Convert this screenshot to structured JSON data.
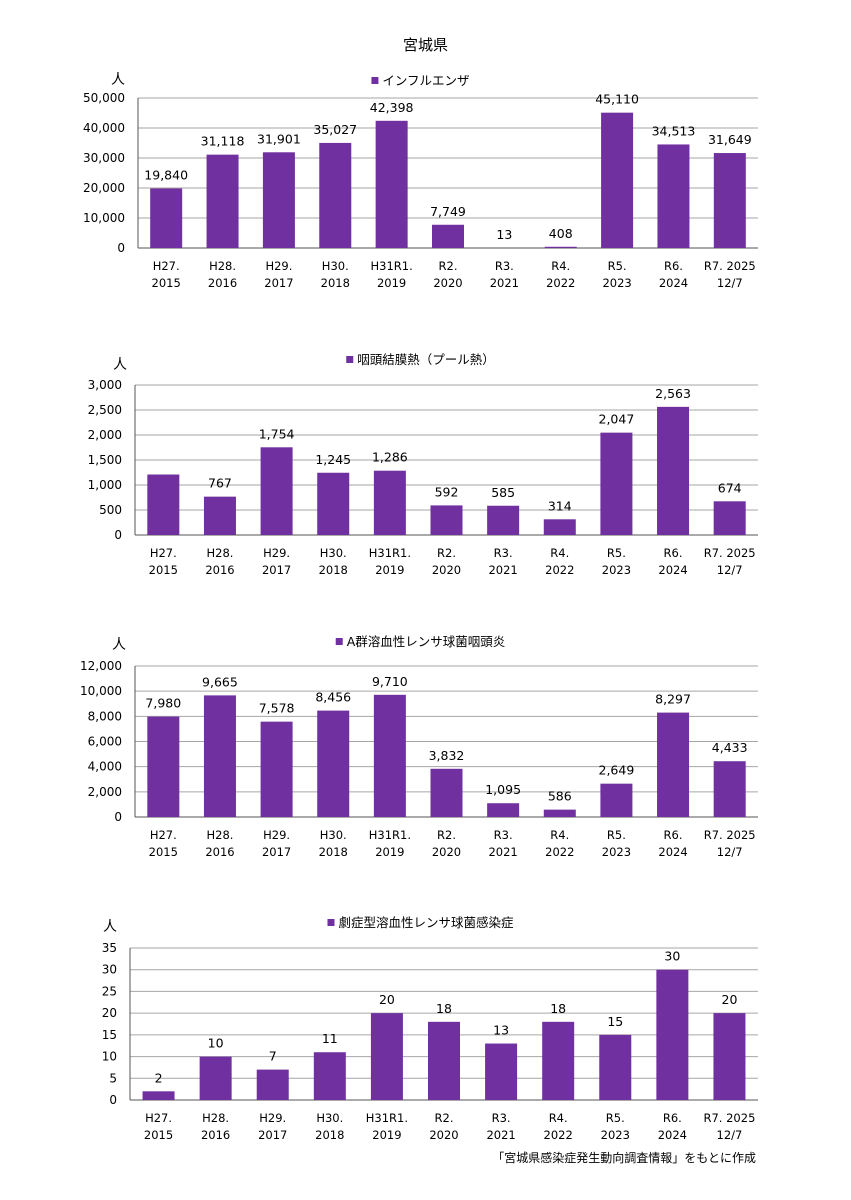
{
  "page_title": "宮城県",
  "source_note": "「宮城県感染症発生動向調査情報」をもとに作成",
  "bar_color": "#7030A0",
  "chart_data": [
    {
      "type": "bar",
      "title": "インフルエンザ",
      "ylabel": "人",
      "ylim": [
        0,
        50000
      ],
      "yticks": [
        "0",
        "10,000",
        "20,000",
        "30,000",
        "40,000",
        "50,000"
      ],
      "categories": [
        [
          "H27.",
          "2015"
        ],
        [
          "H28.",
          "2016"
        ],
        [
          "H29.",
          "2017"
        ],
        [
          "H30.",
          "2018"
        ],
        [
          "H31R1.",
          "2019"
        ],
        [
          "R2.",
          "2020"
        ],
        [
          "R3.",
          "2021"
        ],
        [
          "R4.",
          "2022"
        ],
        [
          "R5.",
          "2023"
        ],
        [
          "R6.",
          "2024"
        ],
        [
          "R7. 2025",
          "12/7"
        ]
      ],
      "values": [
        19840,
        31118,
        31901,
        35027,
        42398,
        7749,
        13,
        408,
        45110,
        34513,
        31649
      ],
      "labels": [
        "19,840",
        "31,118",
        "31,901",
        "35,027",
        "42,398",
        "7,749",
        "13",
        "408",
        "45,110",
        "34,513",
        "31,649"
      ]
    },
    {
      "type": "bar",
      "title": "咽頭結膜熱（プール熱）",
      "ylabel": "人",
      "ylim": [
        0,
        3000
      ],
      "yticks": [
        "0",
        "500",
        "1,000",
        "1,500",
        "2,000",
        "2,500",
        "3,000"
      ],
      "categories": [
        [
          "H27.",
          "2015"
        ],
        [
          "H28.",
          "2016"
        ],
        [
          "H29.",
          "2017"
        ],
        [
          "H30.",
          "2018"
        ],
        [
          "H31R1.",
          "2019"
        ],
        [
          "R2.",
          "2020"
        ],
        [
          "R3.",
          "2021"
        ],
        [
          "R4.",
          "2022"
        ],
        [
          "R5.",
          "2023"
        ],
        [
          "R6.",
          "2024"
        ],
        [
          "R7. 2025",
          "12/7"
        ]
      ],
      "values": [
        1210,
        767,
        1754,
        1245,
        1286,
        592,
        585,
        314,
        2047,
        2563,
        674
      ],
      "labels": [
        "",
        "767",
        "1,754",
        "1,245",
        "1,286",
        "592",
        "585",
        "314",
        "2,047",
        "2,563",
        "674"
      ]
    },
    {
      "type": "bar",
      "title": "A群溶血性レンサ球菌咽頭炎",
      "ylabel": "人",
      "ylim": [
        0,
        12000
      ],
      "yticks": [
        "0",
        "2,000",
        "4,000",
        "6,000",
        "8,000",
        "10,000",
        "12,000"
      ],
      "categories": [
        [
          "H27.",
          "2015"
        ],
        [
          "H28.",
          "2016"
        ],
        [
          "H29.",
          "2017"
        ],
        [
          "H30.",
          "2018"
        ],
        [
          "H31R1.",
          "2019"
        ],
        [
          "R2.",
          "2020"
        ],
        [
          "R3.",
          "2021"
        ],
        [
          "R4.",
          "2022"
        ],
        [
          "R5.",
          "2023"
        ],
        [
          "R6.",
          "2024"
        ],
        [
          "R7. 2025",
          "12/7"
        ]
      ],
      "values": [
        7980,
        9665,
        7578,
        8456,
        9710,
        3832,
        1095,
        586,
        2649,
        8297,
        4433
      ],
      "labels": [
        "7,980",
        "9,665",
        "7,578",
        "8,456",
        "9,710",
        "3,832",
        "1,095",
        "586",
        "2,649",
        "8,297",
        "4,433"
      ]
    },
    {
      "type": "bar",
      "title": "劇症型溶血性レンサ球菌感染症",
      "ylabel": "人",
      "ylim": [
        0,
        35
      ],
      "yticks": [
        "0",
        "5",
        "10",
        "15",
        "20",
        "25",
        "30",
        "35"
      ],
      "categories": [
        [
          "H27.",
          "2015"
        ],
        [
          "H28.",
          "2016"
        ],
        [
          "H29.",
          "2017"
        ],
        [
          "H30.",
          "2018"
        ],
        [
          "H31R1.",
          "2019"
        ],
        [
          "R2.",
          "2020"
        ],
        [
          "R3.",
          "2021"
        ],
        [
          "R4.",
          "2022"
        ],
        [
          "R5.",
          "2023"
        ],
        [
          "R6.",
          "2024"
        ],
        [
          "R7. 2025",
          "12/7"
        ]
      ],
      "values": [
        2,
        10,
        7,
        11,
        20,
        18,
        13,
        18,
        15,
        30,
        20
      ],
      "labels": [
        "2",
        "10",
        "7",
        "11",
        "20",
        "18",
        "13",
        "18",
        "15",
        "30",
        "20"
      ]
    }
  ]
}
